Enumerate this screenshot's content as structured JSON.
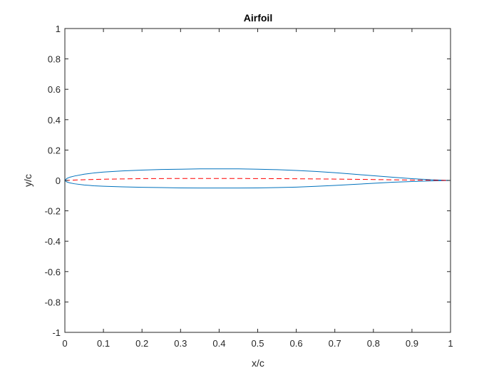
{
  "chart_data": {
    "type": "line",
    "title": "Airfoil",
    "xlabel": "x/c",
    "ylabel": "y/c",
    "xlim": [
      0,
      1
    ],
    "ylim": [
      -1,
      1
    ],
    "xticks": [
      0,
      0.1,
      0.2,
      0.3,
      0.4,
      0.5,
      0.6,
      0.7,
      0.8,
      0.9,
      1
    ],
    "yticks": [
      -1,
      -0.8,
      -0.6,
      -0.4,
      -0.2,
      0,
      0.2,
      0.4,
      0.6,
      0.8,
      1
    ],
    "xtick_labels": [
      "0",
      "0.1",
      "0.2",
      "0.3",
      "0.4",
      "0.5",
      "0.6",
      "0.7",
      "0.8",
      "0.9",
      "1"
    ],
    "ytick_labels": [
      "-1",
      "-0.8",
      "-0.6",
      "-0.4",
      "-0.2",
      "0",
      "0.2",
      "0.4",
      "0.6",
      "0.8",
      "1"
    ],
    "grid": false,
    "series": [
      {
        "color": "#0072BD",
        "line_style": "solid",
        "x": [
          0,
          0.005,
          0.0125,
          0.025,
          0.05,
          0.075,
          0.1,
          0.15,
          0.2,
          0.25,
          0.3,
          0.35,
          0.4,
          0.45,
          0.5,
          0.55,
          0.6,
          0.65,
          0.7,
          0.75,
          0.8,
          0.85,
          0.9,
          0.95,
          1.0
        ],
        "y": [
          0,
          0.013,
          0.021,
          0.029,
          0.041,
          0.049,
          0.055,
          0.063,
          0.068,
          0.072,
          0.074,
          0.076,
          0.076,
          0.076,
          0.074,
          0.071,
          0.066,
          0.059,
          0.051,
          0.041,
          0.031,
          0.021,
          0.012,
          0.005,
          0
        ]
      },
      {
        "color": "#0072BD",
        "line_style": "solid",
        "x": [
          0,
          0.005,
          0.0125,
          0.025,
          0.05,
          0.075,
          0.1,
          0.15,
          0.2,
          0.25,
          0.3,
          0.35,
          0.4,
          0.45,
          0.5,
          0.55,
          0.6,
          0.65,
          0.7,
          0.75,
          0.8,
          0.85,
          0.9,
          0.95,
          1.0
        ],
        "y": [
          0,
          -0.01,
          -0.016,
          -0.022,
          -0.03,
          -0.035,
          -0.038,
          -0.042,
          -0.045,
          -0.047,
          -0.049,
          -0.05,
          -0.05,
          -0.05,
          -0.049,
          -0.047,
          -0.044,
          -0.039,
          -0.033,
          -0.026,
          -0.019,
          -0.012,
          -0.007,
          -0.003,
          0
        ]
      },
      {
        "color": "#FF0000",
        "line_style": "dashed",
        "x": [
          0,
          0.05,
          0.1,
          0.2,
          0.3,
          0.4,
          0.5,
          0.6,
          0.7,
          0.8,
          0.9,
          1.0
        ],
        "y": [
          0,
          0.005,
          0.008,
          0.012,
          0.013,
          0.013,
          0.0125,
          0.011,
          0.009,
          0.006,
          0.0025,
          0
        ]
      }
    ]
  }
}
